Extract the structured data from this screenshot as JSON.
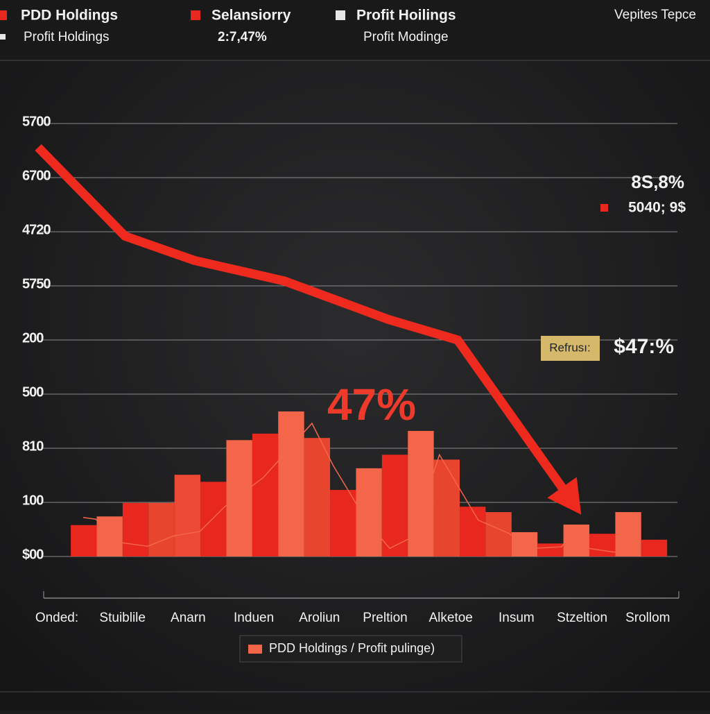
{
  "header": {
    "items": [
      {
        "label": "PDD Holdings",
        "color": "#e8271f"
      },
      {
        "label": "Selansiorry",
        "color": "#e8271f"
      },
      {
        "label": "Profit Hoilings",
        "color": "#e6e6e6"
      }
    ],
    "right": "Vepites Tepce",
    "sub": [
      {
        "label": "Profit Holdings",
        "color": "#e6e6e6"
      },
      {
        "label": "2:7,47%"
      },
      {
        "label": "Profit Modinge"
      }
    ]
  },
  "chart_data": {
    "type": "bar",
    "grid_labels": [
      "5700",
      "6700",
      "4720",
      "5750",
      "200",
      "500",
      "810",
      "100",
      "$00"
    ],
    "x_labels": [
      "Onded:",
      "Stuiblile",
      "Anarn",
      "Induen",
      "Aroliun",
      "Preltion",
      "Alketoe",
      "Insum",
      "Stzeltion",
      "Srollom"
    ],
    "xlim": [
      -1.5,
      23.45
    ],
    "ylim": [
      0,
      8
    ],
    "bar_width": 1,
    "x": [
      0,
      1,
      2,
      3,
      4,
      5,
      6,
      7,
      8,
      9,
      10,
      11,
      12,
      13,
      14,
      15,
      16,
      17,
      18,
      19,
      20,
      21,
      22
    ],
    "values": [
      0.58,
      0.74,
      0.99,
      0.99,
      1.51,
      1.38,
      2.15,
      2.27,
      2.68,
      2.19,
      1.23,
      1.63,
      1.88,
      2.32,
      1.79,
      0.92,
      0.82,
      0.45,
      0.24,
      0.59,
      0.42,
      0.82,
      0.31
    ],
    "colors": [
      "#e8271f",
      "#f4664a",
      "#e8271f",
      "#e8452f",
      "#ec4a34",
      "#e8271f",
      "#f4664a",
      "#e8271f",
      "#f4664a",
      "#e8452f",
      "#e8271f",
      "#f4664a",
      "#e8271f",
      "#f4664a",
      "#e8452f",
      "#e8271f",
      "#e8452f",
      "#f4664a",
      "#e8271f",
      "#f4664a",
      "#e8271f",
      "#f4664a",
      "#e8271f"
    ],
    "lines": [
      {
        "color": "#f4664a",
        "width": 1.5,
        "x": [
          0.48,
          0.96,
          1.87,
          2.97,
          3.96,
          4.97,
          5.94,
          7.43,
          9.3,
          10.11,
          11.39,
          12.3,
          13.18,
          14.22,
          15.72,
          16.84,
          17.89,
          18.93,
          19.44,
          19.97,
          20.96,
          21.95
        ],
        "values": [
          0.72,
          0.69,
          0.26,
          0.19,
          0.38,
          0.46,
          0.92,
          1.46,
          2.46,
          1.69,
          0.67,
          0.15,
          0.36,
          1.88,
          0.67,
          0.44,
          0.15,
          0.18,
          0.51,
          0.15,
          0.08,
          0.18
        ]
      },
      {
        "color": "#ee2a1e",
        "width": 13,
        "arrow": true,
        "x": [
          -1.26,
          2.09,
          4.76,
          8.24,
          12.25,
          14.92,
          19.47
        ],
        "values": [
          7.56,
          5.92,
          5.47,
          5.09,
          4.38,
          4.0,
          0.92
        ]
      }
    ],
    "annotations": {
      "big": "47%",
      "top_right": "8S,8%",
      "top_right_sub": "5040; 9$",
      "badge": "Refrusı:",
      "badge_value": "$47:%"
    },
    "legend": "PDD Holdings / Profit pulinge)",
    "legend_color": "#f4664a"
  }
}
